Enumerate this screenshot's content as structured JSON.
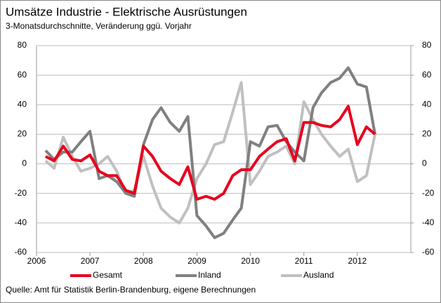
{
  "chart_data": {
    "type": "line",
    "title": "Umsätze Industrie - Elektrische Ausrüstungen",
    "subtitle": "3-Monatsdurchschnitte, Veränderung ggü. Vorjahr",
    "source": "Quelle: Amt für Statistik Berlin-Brandenburg, eigene Berechnungen",
    "x": [
      2006.17,
      2006.33,
      2006.5,
      2006.67,
      2006.83,
      2007.0,
      2007.17,
      2007.33,
      2007.5,
      2007.67,
      2007.83,
      2008.0,
      2008.17,
      2008.33,
      2008.5,
      2008.67,
      2008.83,
      2009.0,
      2009.17,
      2009.33,
      2009.5,
      2009.67,
      2009.83,
      2010.0,
      2010.17,
      2010.33,
      2010.5,
      2010.67,
      2010.83,
      2011.0,
      2011.17,
      2011.33,
      2011.5,
      2011.67,
      2011.83,
      2012.0,
      2012.17,
      2012.33
    ],
    "series": [
      {
        "name": "Gesamt",
        "color": "#e8001c",
        "values": [
          5,
          2,
          12,
          3,
          2,
          6,
          -5,
          -8,
          -8,
          -18,
          -20,
          12,
          5,
          -5,
          -10,
          -14,
          -2,
          -24,
          -22,
          -24,
          -20,
          -8,
          -4,
          -4,
          5,
          10,
          15,
          17,
          2,
          28,
          28,
          26,
          25,
          30,
          39,
          13,
          25,
          20
        ]
      },
      {
        "name": "Inland",
        "color": "#808080",
        "values": [
          9,
          3,
          8,
          8,
          15,
          22,
          -10,
          -8,
          -12,
          -20,
          -22,
          13,
          30,
          38,
          28,
          22,
          32,
          -35,
          -42,
          -50,
          -47,
          -38,
          -30,
          15,
          12,
          25,
          26,
          15,
          8,
          2,
          38,
          48,
          55,
          58,
          65,
          54,
          52,
          20
        ]
      },
      {
        "name": "Ausland",
        "color": "#c0c0c0",
        "values": [
          2,
          -3,
          18,
          5,
          -5,
          -3,
          0,
          5,
          -5,
          -20,
          -18,
          5,
          -15,
          -30,
          -36,
          -40,
          -30,
          -10,
          0,
          13,
          15,
          35,
          55,
          -14,
          -5,
          5,
          8,
          12,
          0,
          42,
          30,
          20,
          12,
          5,
          10,
          -12,
          -8,
          20
        ]
      }
    ],
    "xlim": [
      2006,
      2013
    ],
    "xticks": [
      2006,
      2007,
      2008,
      2009,
      2010,
      2011,
      2012
    ],
    "ylim": [
      -60,
      80
    ],
    "yticks": [
      -60,
      -40,
      -20,
      0,
      20,
      40,
      60,
      80
    ],
    "y2lim": [
      -60,
      80
    ],
    "y2ticks": [
      -60,
      -40,
      -20,
      0,
      20,
      40,
      60,
      80
    ],
    "grid": true,
    "legend": "bottom"
  }
}
